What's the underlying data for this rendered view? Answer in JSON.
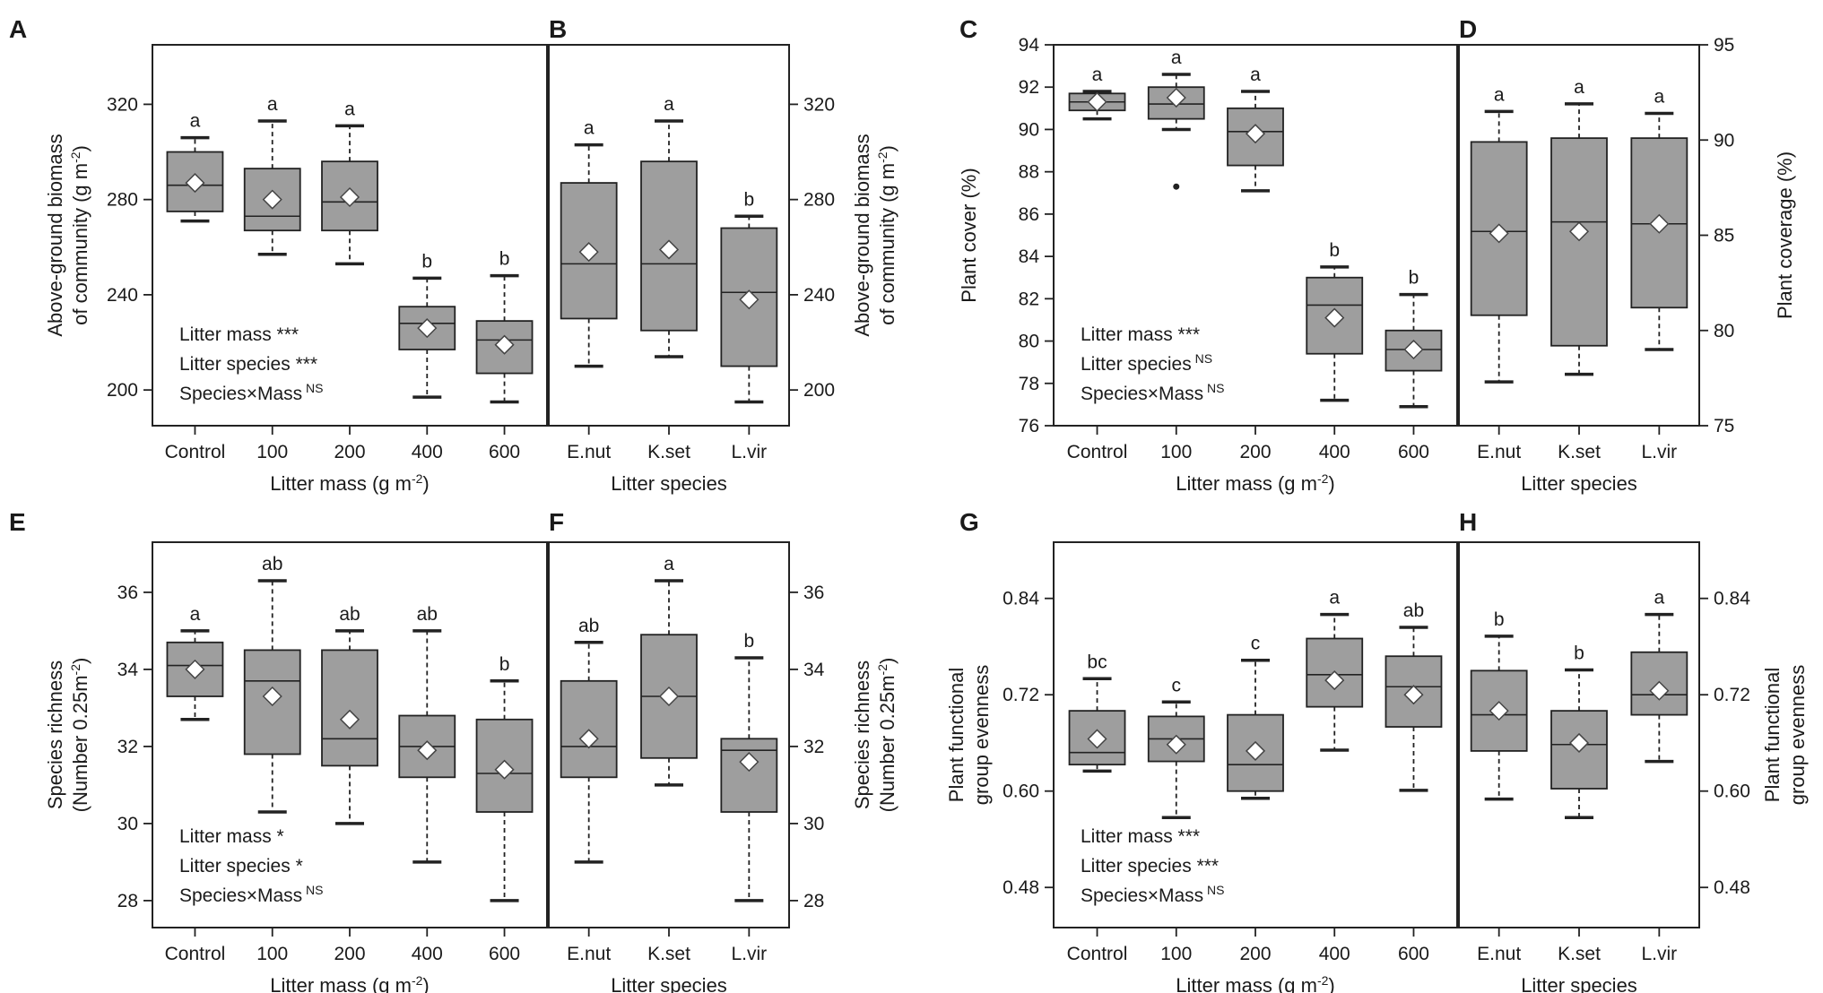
{
  "panel_groups": [
    {
      "id": "biomass",
      "left": {
        "letter": "A",
        "ylim": [
          185,
          345
        ],
        "yticks": [
          200,
          240,
          280,
          320
        ],
        "ylabel": [
          "Above-ground biomass",
          "of community (g m",
          "-2",
          ")"
        ],
        "xlabel": [
          "Litter mass (g m",
          "-2",
          ")"
        ],
        "categories": [
          "Control",
          "100",
          "200",
          "400",
          "600"
        ],
        "boxes": [
          {
            "whislo": 271,
            "q1": 275,
            "med": 286,
            "q3": 300,
            "whishi": 306,
            "mean": 287,
            "sig": "a",
            "outliers": []
          },
          {
            "whislo": 257,
            "q1": 267,
            "med": 273,
            "q3": 293,
            "whishi": 313,
            "mean": 280,
            "sig": "a",
            "outliers": []
          },
          {
            "whislo": 253,
            "q1": 267,
            "med": 279,
            "q3": 296,
            "whishi": 311,
            "mean": 281,
            "sig": "a",
            "outliers": []
          },
          {
            "whislo": 197,
            "q1": 217,
            "med": 228,
            "q3": 235,
            "whishi": 247,
            "mean": 226,
            "sig": "b",
            "outliers": []
          },
          {
            "whislo": 195,
            "q1": 207,
            "med": 221,
            "q3": 229,
            "whishi": 248,
            "mean": 219,
            "sig": "b",
            "outliers": []
          }
        ],
        "stats": [
          {
            "label": "Litter mass",
            "sig": " ***",
            "sup": false
          },
          {
            "label": "Litter species",
            "sig": " ***",
            "sup": false
          },
          {
            "label": "Species×Mass",
            "sig": "NS",
            "sup": true
          }
        ]
      },
      "right": {
        "letter": "B",
        "ylim": [
          185,
          345
        ],
        "yticks": [
          200,
          240,
          280,
          320
        ],
        "ylabel": [
          "Above-ground biomass",
          "of community (g m",
          "-2",
          ")"
        ],
        "xlabel": [
          "Litter species",
          "",
          ""
        ],
        "categories": [
          "E.nut",
          "K.set",
          "L.vir"
        ],
        "boxes": [
          {
            "whislo": 210,
            "q1": 230,
            "med": 253,
            "q3": 287,
            "whishi": 303,
            "mean": 258,
            "sig": "a",
            "outliers": []
          },
          {
            "whislo": 214,
            "q1": 225,
            "med": 253,
            "q3": 296,
            "whishi": 313,
            "mean": 259,
            "sig": "a",
            "outliers": []
          },
          {
            "whislo": 195,
            "q1": 210,
            "med": 241,
            "q3": 268,
            "whishi": 273,
            "mean": 238,
            "sig": "b",
            "outliers": []
          }
        ]
      }
    },
    {
      "id": "cover",
      "left": {
        "letter": "C",
        "ylim": [
          76,
          94
        ],
        "yticks": [
          76,
          78,
          80,
          82,
          84,
          86,
          88,
          90,
          92,
          94
        ],
        "ylabel": [
          "",
          "Plant cover (%)",
          "",
          ""
        ],
        "xlabel": [
          "Litter mass (g m",
          "-2",
          ")"
        ],
        "categories": [
          "Control",
          "100",
          "200",
          "400",
          "600"
        ],
        "boxes": [
          {
            "whislo": 90.5,
            "q1": 90.9,
            "med": 91.3,
            "q3": 91.7,
            "whishi": 91.8,
            "mean": 91.3,
            "sig": "a",
            "outliers": []
          },
          {
            "whislo": 90.0,
            "q1": 90.5,
            "med": 91.2,
            "q3": 92.0,
            "whishi": 92.6,
            "mean": 91.5,
            "sig": "a",
            "outliers": [
              87.3
            ]
          },
          {
            "whislo": 87.1,
            "q1": 88.3,
            "med": 89.9,
            "q3": 91.0,
            "whishi": 91.8,
            "mean": 89.8,
            "sig": "a",
            "outliers": []
          },
          {
            "whislo": 77.2,
            "q1": 79.4,
            "med": 81.7,
            "q3": 83.0,
            "whishi": 83.5,
            "mean": 81.1,
            "sig": "b",
            "outliers": []
          },
          {
            "whislo": 76.9,
            "q1": 78.6,
            "med": 79.6,
            "q3": 80.5,
            "whishi": 82.2,
            "mean": 79.6,
            "sig": "b",
            "outliers": []
          }
        ],
        "stats": [
          {
            "label": "Litter mass",
            "sig": " ***",
            "sup": false
          },
          {
            "label": "Litter species",
            "sig": "NS",
            "sup": true
          },
          {
            "label": "Species×Mass",
            "sig": "NS",
            "sup": true
          }
        ]
      },
      "right": {
        "letter": "D",
        "ylim": [
          75,
          95
        ],
        "yticks": [
          75,
          80,
          85,
          90,
          95
        ],
        "ylabel": [
          "",
          "Plant coverage (%)",
          "",
          ""
        ],
        "xlabel": [
          "Litter species",
          "",
          ""
        ],
        "categories": [
          "E.nut",
          "K.set",
          "L.vir"
        ],
        "boxes": [
          {
            "whislo": 77.3,
            "q1": 80.8,
            "med": 85.2,
            "q3": 89.9,
            "whishi": 91.5,
            "mean": 85.1,
            "sig": "a",
            "outliers": []
          },
          {
            "whislo": 77.7,
            "q1": 79.2,
            "med": 85.7,
            "q3": 90.1,
            "whishi": 91.9,
            "mean": 85.2,
            "sig": "a",
            "outliers": []
          },
          {
            "whislo": 79.0,
            "q1": 81.2,
            "med": 85.6,
            "q3": 90.1,
            "whishi": 91.4,
            "mean": 85.6,
            "sig": "a",
            "outliers": []
          }
        ]
      }
    },
    {
      "id": "richness",
      "left": {
        "letter": "E",
        "ylim": [
          27.3,
          37.3
        ],
        "yticks": [
          28,
          30,
          32,
          34,
          36
        ],
        "ylabel": [
          "Species richness",
          "(Number 0.25m",
          "-2",
          ")"
        ],
        "xlabel": [
          "Litter mass (g m",
          "-2",
          ")"
        ],
        "categories": [
          "Control",
          "100",
          "200",
          "400",
          "600"
        ],
        "boxes": [
          {
            "whislo": 32.7,
            "q1": 33.3,
            "med": 34.1,
            "q3": 34.7,
            "whishi": 35.0,
            "mean": 34.0,
            "sig": "a",
            "outliers": []
          },
          {
            "whislo": 30.3,
            "q1": 31.8,
            "med": 33.7,
            "q3": 34.5,
            "whishi": 36.3,
            "mean": 33.3,
            "sig": "ab",
            "outliers": []
          },
          {
            "whislo": 30.0,
            "q1": 31.5,
            "med": 32.2,
            "q3": 34.5,
            "whishi": 35.0,
            "mean": 32.7,
            "sig": "ab",
            "outliers": []
          },
          {
            "whislo": 29.0,
            "q1": 31.2,
            "med": 32.0,
            "q3": 32.8,
            "whishi": 35.0,
            "mean": 31.9,
            "sig": "ab",
            "outliers": []
          },
          {
            "whislo": 28.0,
            "q1": 30.3,
            "med": 31.3,
            "q3": 32.7,
            "whishi": 33.7,
            "mean": 31.4,
            "sig": "b",
            "outliers": []
          }
        ],
        "stats": [
          {
            "label": "Litter mass",
            "sig": " *",
            "sup": false
          },
          {
            "label": "Litter species",
            "sig": " *",
            "sup": false
          },
          {
            "label": "Species×Mass",
            "sig": "NS",
            "sup": true
          }
        ]
      },
      "right": {
        "letter": "F",
        "ylim": [
          27.3,
          37.3
        ],
        "yticks": [
          28,
          30,
          32,
          34,
          36
        ],
        "ylabel": [
          "Species richness",
          "(Number 0.25m",
          "-2",
          ")"
        ],
        "xlabel": [
          "Litter species",
          "",
          ""
        ],
        "categories": [
          "E.nut",
          "K.set",
          "L.vir"
        ],
        "boxes": [
          {
            "whislo": 29.0,
            "q1": 31.2,
            "med": 32.0,
            "q3": 33.7,
            "whishi": 34.7,
            "mean": 32.2,
            "sig": "ab",
            "outliers": []
          },
          {
            "whislo": 31.0,
            "q1": 31.7,
            "med": 33.3,
            "q3": 34.9,
            "whishi": 36.3,
            "mean": 33.3,
            "sig": "a",
            "outliers": []
          },
          {
            "whislo": 28.0,
            "q1": 30.3,
            "med": 31.9,
            "q3": 32.2,
            "whishi": 34.3,
            "mean": 31.6,
            "sig": "b",
            "outliers": []
          }
        ]
      }
    },
    {
      "id": "evenness",
      "left": {
        "letter": "G",
        "ylim": [
          0.43,
          0.91
        ],
        "yticks": [
          0.48,
          0.6,
          0.72,
          0.84
        ],
        "ylabel": [
          "Plant functional",
          "group evenness",
          "",
          ""
        ],
        "xlabel": [
          "Litter mass (g m",
          "-2",
          ")"
        ],
        "categories": [
          "Control",
          "100",
          "200",
          "400",
          "600"
        ],
        "boxes": [
          {
            "whislo": 0.625,
            "q1": 0.633,
            "med": 0.648,
            "q3": 0.7,
            "whishi": 0.74,
            "mean": 0.665,
            "sig": "bc",
            "outliers": []
          },
          {
            "whislo": 0.567,
            "q1": 0.637,
            "med": 0.665,
            "q3": 0.693,
            "whishi": 0.711,
            "mean": 0.658,
            "sig": "c",
            "outliers": []
          },
          {
            "whislo": 0.591,
            "q1": 0.6,
            "med": 0.633,
            "q3": 0.695,
            "whishi": 0.763,
            "mean": 0.65,
            "sig": "c",
            "outliers": []
          },
          {
            "whislo": 0.651,
            "q1": 0.705,
            "med": 0.745,
            "q3": 0.79,
            "whishi": 0.82,
            "mean": 0.738,
            "sig": "a",
            "outliers": []
          },
          {
            "whislo": 0.601,
            "q1": 0.68,
            "med": 0.73,
            "q3": 0.768,
            "whishi": 0.804,
            "mean": 0.72,
            "sig": "ab",
            "outliers": []
          }
        ],
        "stats": [
          {
            "label": "Litter mass",
            "sig": " ***",
            "sup": false
          },
          {
            "label": "Litter species",
            "sig": " ***",
            "sup": false
          },
          {
            "label": "Species×Mass",
            "sig": "NS",
            "sup": true
          }
        ]
      },
      "right": {
        "letter": "H",
        "ylim": [
          0.43,
          0.91
        ],
        "yticks": [
          0.48,
          0.6,
          0.72,
          0.84
        ],
        "ylabel": [
          "Plant functional",
          "group evenness",
          "",
          ""
        ],
        "xlabel": [
          "Litter species",
          "",
          ""
        ],
        "categories": [
          "E.nut",
          "K.set",
          "L.vir"
        ],
        "boxes": [
          {
            "whislo": 0.59,
            "q1": 0.65,
            "med": 0.695,
            "q3": 0.75,
            "whishi": 0.793,
            "mean": 0.7,
            "sig": "b",
            "outliers": []
          },
          {
            "whislo": 0.567,
            "q1": 0.603,
            "med": 0.658,
            "q3": 0.7,
            "whishi": 0.751,
            "mean": 0.66,
            "sig": "b",
            "outliers": []
          },
          {
            "whislo": 0.637,
            "q1": 0.695,
            "med": 0.72,
            "q3": 0.773,
            "whishi": 0.82,
            "mean": 0.725,
            "sig": "a",
            "outliers": []
          }
        ]
      }
    }
  ],
  "chart_data": [
    {
      "type": "boxplot",
      "panel": "A",
      "xlabel": "Litter mass (g m-2)",
      "ylabel": "Above-ground biomass of community (g m-2)",
      "categories": [
        "Control",
        "100",
        "200",
        "400",
        "600"
      ],
      "medians": [
        286,
        273,
        279,
        228,
        221
      ],
      "means": [
        287,
        280,
        281,
        226,
        219
      ],
      "significance": [
        "a",
        "a",
        "a",
        "b",
        "b"
      ]
    },
    {
      "type": "boxplot",
      "panel": "B",
      "xlabel": "Litter species",
      "ylabel": "Above-ground biomass of community (g m-2)",
      "categories": [
        "E.nut",
        "K.set",
        "L.vir"
      ],
      "medians": [
        253,
        253,
        241
      ],
      "means": [
        258,
        259,
        238
      ],
      "significance": [
        "a",
        "a",
        "b"
      ]
    },
    {
      "type": "boxplot",
      "panel": "C",
      "xlabel": "Litter mass (g m-2)",
      "ylabel": "Plant cover (%)",
      "categories": [
        "Control",
        "100",
        "200",
        "400",
        "600"
      ],
      "medians": [
        91.3,
        91.2,
        89.9,
        81.7,
        79.6
      ],
      "means": [
        91.3,
        91.5,
        89.8,
        81.1,
        79.6
      ],
      "significance": [
        "a",
        "a",
        "a",
        "b",
        "b"
      ]
    },
    {
      "type": "boxplot",
      "panel": "D",
      "xlabel": "Litter species",
      "ylabel": "Plant coverage (%)",
      "categories": [
        "E.nut",
        "K.set",
        "L.vir"
      ],
      "medians": [
        85.2,
        85.7,
        85.6
      ],
      "means": [
        85.1,
        85.2,
        85.6
      ],
      "significance": [
        "a",
        "a",
        "a"
      ]
    },
    {
      "type": "boxplot",
      "panel": "E",
      "xlabel": "Litter mass (g m-2)",
      "ylabel": "Species richness (Number 0.25m-2)",
      "categories": [
        "Control",
        "100",
        "200",
        "400",
        "600"
      ],
      "medians": [
        34.1,
        33.7,
        32.2,
        32.0,
        31.3
      ],
      "means": [
        34.0,
        33.3,
        32.7,
        31.9,
        31.4
      ],
      "significance": [
        "a",
        "ab",
        "ab",
        "ab",
        "b"
      ]
    },
    {
      "type": "boxplot",
      "panel": "F",
      "xlabel": "Litter species",
      "ylabel": "Species richness (Number 0.25m-2)",
      "categories": [
        "E.nut",
        "K.set",
        "L.vir"
      ],
      "medians": [
        32.0,
        33.3,
        31.9
      ],
      "means": [
        32.2,
        33.3,
        31.6
      ],
      "significance": [
        "ab",
        "a",
        "b"
      ]
    },
    {
      "type": "boxplot",
      "panel": "G",
      "xlabel": "Litter mass (g m-2)",
      "ylabel": "Plant functional group evenness",
      "categories": [
        "Control",
        "100",
        "200",
        "400",
        "600"
      ],
      "medians": [
        0.648,
        0.665,
        0.633,
        0.745,
        0.73
      ],
      "means": [
        0.665,
        0.658,
        0.65,
        0.738,
        0.72
      ],
      "significance": [
        "bc",
        "c",
        "c",
        "a",
        "ab"
      ]
    },
    {
      "type": "boxplot",
      "panel": "H",
      "xlabel": "Litter species",
      "ylabel": "Plant functional group evenness",
      "categories": [
        "E.nut",
        "K.set",
        "L.vir"
      ],
      "medians": [
        0.695,
        0.658,
        0.72
      ],
      "means": [
        0.7,
        0.66,
        0.725
      ],
      "significance": [
        "b",
        "b",
        "a"
      ]
    }
  ]
}
